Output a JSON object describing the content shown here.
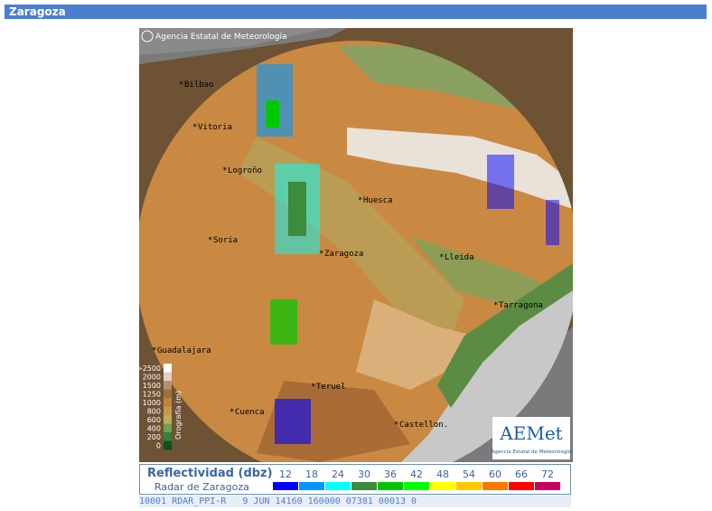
{
  "header": {
    "title": "Zaragoza"
  },
  "map": {
    "copyright": "Agencia Estatal de Meteorología",
    "cities": [
      "Bilbao",
      "Vitoria",
      "Logroño",
      "Huesca",
      "Soria",
      "Zaragoza",
      "Lleida",
      "Tarragona",
      "Guadalajara",
      "Teruel",
      "Cuenca",
      "Castellon."
    ],
    "orography": {
      "title": "Orografía (m)",
      "levels": [
        ">2500",
        "2000",
        "1500",
        "1250",
        "1000",
        "800",
        "600",
        "400",
        "200",
        "0"
      ]
    },
    "logo": {
      "name": "AEMet",
      "caption": "Agencia Estatal de Meteorología"
    }
  },
  "legend": {
    "title": "Reflectividad (dbz)",
    "subtitle": "Radar de Zaragoza",
    "levels": [
      {
        "label": 12,
        "color": "#0000ff"
      },
      {
        "label": 18,
        "color": "#0096ff"
      },
      {
        "label": 24,
        "color": "#00ffff"
      },
      {
        "label": 30,
        "color": "#3c8c3c"
      },
      {
        "label": 36,
        "color": "#00c800"
      },
      {
        "label": 42,
        "color": "#00ff00"
      },
      {
        "label": 48,
        "color": "#ffff00"
      },
      {
        "label": 54,
        "color": "#ffc800"
      },
      {
        "label": 60,
        "color": "#ff7800"
      },
      {
        "label": 66,
        "color": "#ff0000"
      },
      {
        "label": 72,
        "color": "#c80064"
      }
    ]
  },
  "status": "10001 RDAR_PPI-R   9 JUN 14160 160000 07381 00013 0"
}
